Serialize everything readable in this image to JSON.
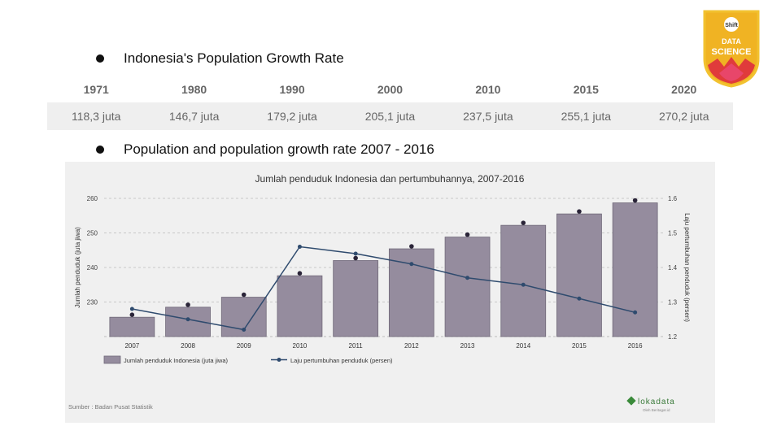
{
  "bullets": {
    "growth_rate_title": "Indonesia's Population Growth Rate",
    "population_title": "Population and population growth rate 2007 - 2016"
  },
  "badge": {
    "top": "Shift",
    "line1": "DATA",
    "line2": "SCIENCE",
    "colors": {
      "border": "#f2c230",
      "fill": "#f0b323",
      "red": "#e03b3b",
      "pink": "#e8466a"
    }
  },
  "population_table": {
    "years": [
      "1971",
      "1980",
      "1990",
      "2000",
      "2010",
      "2015",
      "2020"
    ],
    "values": [
      "118,3 juta",
      "146,7 juta",
      "179,2 juta",
      "205,1 juta",
      "237,5 juta",
      "255,1 juta",
      "270,2 juta"
    ]
  },
  "chart_data": {
    "type": "bar",
    "title": "Jumlah penduduk Indonesia dan pertumbuhannya, 2007-2016",
    "categories": [
      "2007",
      "2008",
      "2009",
      "2010",
      "2011",
      "2012",
      "2013",
      "2014",
      "2015",
      "2016"
    ],
    "series": [
      {
        "name": "Jumlah penduduk Indonesia (juta jiwa)",
        "type": "bar",
        "axis": "left",
        "values": [
          225.6,
          228.5,
          231.4,
          237.6,
          242.0,
          245.4,
          248.8,
          252.2,
          255.5,
          258.7
        ],
        "color": "#958c9e"
      },
      {
        "name": "Laju pertumbuhan penduduk (persen)",
        "type": "line",
        "axis": "right",
        "values": [
          1.28,
          1.25,
          1.22,
          1.46,
          1.44,
          1.41,
          1.37,
          1.35,
          1.31,
          1.27
        ],
        "color": "#2f4b6e"
      }
    ],
    "ylabel": "Jumlah penduduk (juta jiwa)",
    "y2label": "Laju pertumbuhan penduduk (persen)",
    "ylim": [
      220,
      260
    ],
    "y2lim": [
      1.2,
      1.6
    ],
    "yticks": [
      "230",
      "240",
      "250",
      "260"
    ],
    "y2ticks": [
      "1.2",
      "1.3",
      "1.4",
      "1.5",
      "1.6"
    ],
    "grid": true,
    "legend_position": "bottom-left",
    "source": "Sumber : Badan Pusat Statistik",
    "logo": "lokadata",
    "logo_sub": "Oleh Beritagar.id"
  }
}
